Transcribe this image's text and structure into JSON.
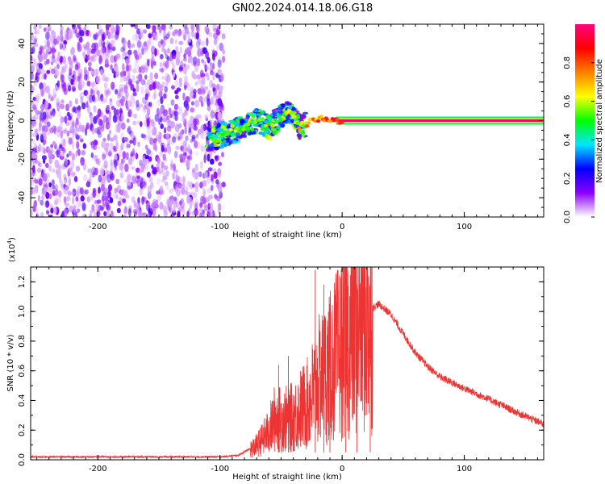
{
  "title": "GN02.2024.014.18.06.G18",
  "chart_data": [
    {
      "type": "heatmap",
      "xlabel": "Height of straight line (km)",
      "ylabel": "Frequency (Hz)",
      "xlim": [
        -255,
        165
      ],
      "ylim": [
        -50,
        50
      ],
      "xticks": [
        -200,
        -100,
        0,
        100
      ],
      "yticks": [
        -40,
        -20,
        0,
        20,
        40
      ],
      "colorbar": {
        "label": "Normalized spectral amplitude",
        "range": [
          0,
          1
        ],
        "ticks": [
          "0.0",
          "0.2",
          "0.4",
          "0.6",
          "0.8"
        ],
        "colors": [
          "#ffffff",
          "#8c00ff",
          "#0000ff",
          "#00e5ff",
          "#00ff00",
          "#ffff00",
          "#ff7f00",
          "#ff0000",
          "#ff0080"
        ]
      },
      "noise_region_x": [
        -255,
        -97
      ],
      "signal_track": [
        {
          "x": -110,
          "y": -10,
          "amp": 0.45
        },
        {
          "x": -100,
          "y": -8,
          "amp": 0.5
        },
        {
          "x": -90,
          "y": -6,
          "amp": 0.55
        },
        {
          "x": -80,
          "y": -3,
          "amp": 0.55
        },
        {
          "x": -70,
          "y": 0,
          "amp": 0.6
        },
        {
          "x": -60,
          "y": -3,
          "amp": 0.5
        },
        {
          "x": -50,
          "y": 2,
          "amp": 0.55
        },
        {
          "x": -45,
          "y": 5,
          "amp": 0.6
        },
        {
          "x": -40,
          "y": 2,
          "amp": 0.6
        },
        {
          "x": -35,
          "y": -3,
          "amp": 0.65
        },
        {
          "x": -30,
          "y": -2,
          "amp": 0.7
        },
        {
          "x": -20,
          "y": 1,
          "amp": 0.8
        },
        {
          "x": -10,
          "y": 0,
          "amp": 0.85
        },
        {
          "x": 0,
          "y": 0,
          "amp": 0.9
        },
        {
          "x": 165,
          "y": 0,
          "amp": 0.95
        }
      ]
    },
    {
      "type": "line",
      "xlabel": "Height of straight line (km)",
      "ylabel": "SNR (10 * v/v)",
      "y_multiplier": "(x10",
      "y_multiplier_exp": "4",
      "y_multiplier_close": ")",
      "xlim": [
        -255,
        165
      ],
      "ylim": [
        0,
        1.3
      ],
      "xticks": [
        -200,
        -100,
        0,
        100
      ],
      "yticks": [
        "0.0",
        "0.2",
        "0.4",
        "0.6",
        "0.8",
        "1.0",
        "1.2"
      ],
      "series": [
        {
          "color": "#ee3333",
          "envelope": [
            {
              "x": -255,
              "y": 0.02
            },
            {
              "x": -150,
              "y": 0.02
            },
            {
              "x": -100,
              "y": 0.02
            },
            {
              "x": -85,
              "y": 0.03
            },
            {
              "x": -70,
              "y": 0.1
            },
            {
              "x": -60,
              "y": 0.2
            },
            {
              "x": -55,
              "y": 0.3
            },
            {
              "x": -50,
              "y": 0.28
            },
            {
              "x": -40,
              "y": 0.3
            },
            {
              "x": -35,
              "y": 0.35
            },
            {
              "x": -28,
              "y": 0.4
            },
            {
              "x": -20,
              "y": 0.55
            },
            {
              "x": -10,
              "y": 0.65
            },
            {
              "x": 0,
              "y": 0.8
            },
            {
              "x": 10,
              "y": 0.9
            },
            {
              "x": 20,
              "y": 1.0
            },
            {
              "x": 30,
              "y": 1.05
            },
            {
              "x": 40,
              "y": 0.98
            },
            {
              "x": 50,
              "y": 0.85
            },
            {
              "x": 60,
              "y": 0.72
            },
            {
              "x": 70,
              "y": 0.63
            },
            {
              "x": 80,
              "y": 0.56
            },
            {
              "x": 100,
              "y": 0.48
            },
            {
              "x": 120,
              "y": 0.41
            },
            {
              "x": 140,
              "y": 0.33
            },
            {
              "x": 165,
              "y": 0.24
            }
          ],
          "spikes": [
            {
              "x": -22,
              "y": 1.28
            },
            {
              "x": -15,
              "y": 1.18
            },
            {
              "x": -10,
              "y": 1.05
            },
            {
              "x": 3,
              "y": 1.02
            },
            {
              "x": 12,
              "y": 1.18
            },
            {
              "x": 23,
              "y": 1.19
            },
            {
              "x": -52,
              "y": 0.64
            },
            {
              "x": -44,
              "y": 0.7
            }
          ]
        }
      ]
    }
  ]
}
